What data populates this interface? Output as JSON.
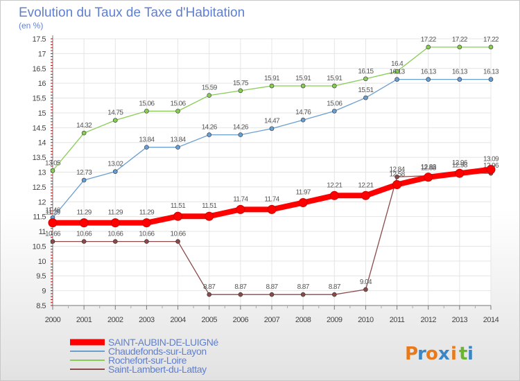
{
  "chart_data": {
    "type": "line",
    "title": "Evolution du Taux de Taxe d'Habitation",
    "subtitle": "(en %)",
    "x": [
      "2000",
      "2001",
      "2002",
      "2003",
      "2004",
      "2005",
      "2006",
      "2007",
      "2008",
      "2009",
      "2010",
      "2011",
      "2012",
      "2013",
      "2014"
    ],
    "ylim": [
      8.5,
      17.5
    ],
    "yticks": [
      8.5,
      9,
      9.5,
      10,
      10.5,
      11,
      11.5,
      12,
      12.5,
      13,
      13.5,
      14,
      14.5,
      15,
      15.5,
      16,
      16.5,
      17,
      17.5
    ],
    "grid": true,
    "legend_position": "bottom-left",
    "series": [
      {
        "name": "SAINT-AUBIN-DE-LUIGNé",
        "color": "#ff0000",
        "values": [
          11.29,
          11.29,
          11.29,
          11.29,
          11.51,
          11.51,
          11.74,
          11.74,
          11.97,
          12.21,
          12.21,
          12.58,
          12.83,
          12.96,
          13.09
        ],
        "labels": [
          "11.29",
          "11.29",
          "11.29",
          "11.29",
          "11.51",
          "11.51",
          "11.74",
          "11.74",
          "11.97",
          "12.21",
          "12.21",
          "12.58",
          "12.83",
          "12.96",
          "13.09"
        ]
      },
      {
        "name": "Chaudefonds-sur-Layon",
        "color": "#6a9ed0",
        "values": [
          11.46,
          12.73,
          13.02,
          13.84,
          13.84,
          14.26,
          14.26,
          14.47,
          14.76,
          15.06,
          15.51,
          16.13,
          16.13,
          16.13,
          16.13
        ],
        "labels": [
          "11.46",
          "12.73",
          "13.02",
          "13.84",
          "13.84",
          "14.26",
          "14.26",
          "14.47",
          "14.76",
          "15.06",
          "15.51",
          "16.13",
          "16.13",
          "16.13",
          "16.13"
        ]
      },
      {
        "name": "Rochefort-sur-Loire",
        "color": "#88cc55",
        "values": [
          13.05,
          14.32,
          14.75,
          15.06,
          15.06,
          15.59,
          15.75,
          15.91,
          15.91,
          15.91,
          16.15,
          16.4,
          17.22,
          17.22,
          17.22
        ],
        "labels": [
          "13.05",
          "14.32",
          "14.75",
          "15.06",
          "15.06",
          "15.59",
          "15.75",
          "15.91",
          "15.91",
          "15.91",
          "16.15",
          "16.4",
          "17.22",
          "17.22",
          "17.22"
        ]
      },
      {
        "name": "Saint-Lambert-du-Lattay",
        "color": "#8a4a4a",
        "values": [
          10.66,
          10.66,
          10.66,
          10.66,
          10.66,
          8.87,
          8.87,
          8.87,
          8.87,
          8.87,
          9.04,
          12.84,
          12.88,
          12.98,
          12.96
        ],
        "labels": [
          "10.66",
          "10.66",
          "10.66",
          "10.66",
          "10.66",
          "8.87",
          "8.87",
          "8.87",
          "8.87",
          "8.87",
          "9.04",
          "12.84",
          "12.88",
          "12.98",
          "12.96"
        ]
      }
    ]
  },
  "logo": {
    "text": "Proxiti",
    "letters": [
      "P",
      "r",
      "o",
      "x",
      "i",
      "t",
      "i"
    ],
    "colors": [
      "#e87a1c",
      "#3d86c6",
      "#e87a1c",
      "#3d86c6",
      "#e87a1c",
      "#6bb431",
      "#3d86c6"
    ]
  }
}
